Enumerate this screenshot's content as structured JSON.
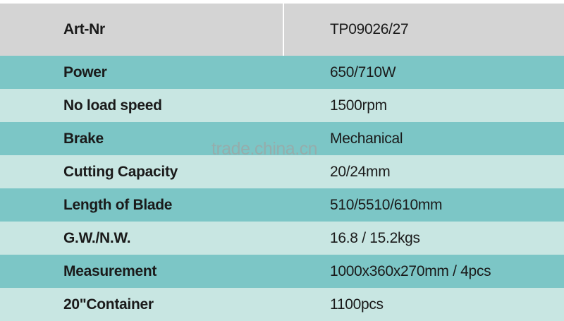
{
  "header": {
    "label": "Art-Nr",
    "value": "TP09026/27"
  },
  "rows": [
    {
      "label": "Power",
      "value": "650/710W"
    },
    {
      "label": "No load speed",
      "value": "1500rpm"
    },
    {
      "label": "Brake",
      "value": "Mechanical"
    },
    {
      "label": "Cutting Capacity",
      "value": "20/24mm"
    },
    {
      "label": "Length of Blade",
      "value": "510/5510/610mm"
    },
    {
      "label": "G.W./N.W.",
      "value": "16.8 / 15.2kgs"
    },
    {
      "label": "Measurement",
      "value": "1000x360x270mm / 4pcs"
    },
    {
      "label": "20\"Container",
      "value": "1100pcs"
    }
  ],
  "watermark": "trade.china.cn",
  "colors": {
    "header": "#d4d4d4",
    "dark_row": "#7cc6c6",
    "light_row": "#c8e6e2"
  }
}
